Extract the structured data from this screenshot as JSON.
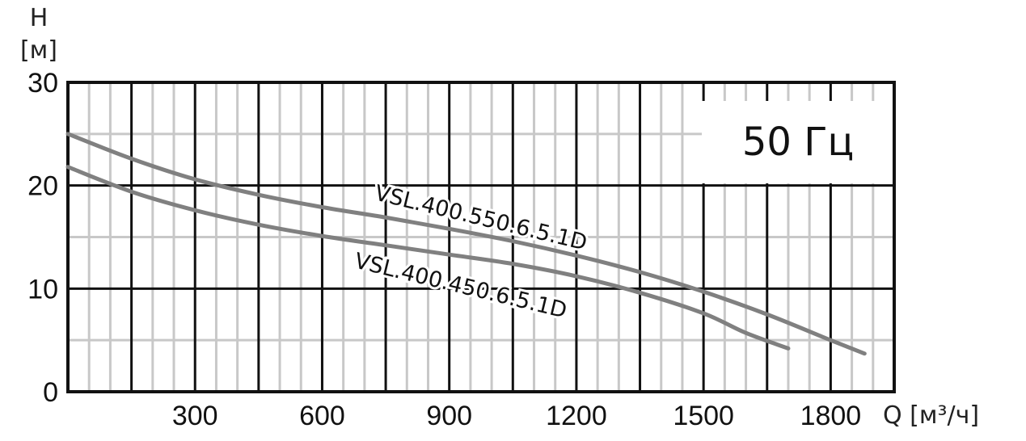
{
  "chart_data": {
    "type": "line",
    "title": "",
    "annotation": "50 Гц",
    "ylabel_symbol": "H",
    "ylabel_unit": "[м]",
    "xlabel_symbol": "Q",
    "xlabel_unit": "[м³/ч]",
    "xlim": [
      0,
      1950
    ],
    "ylim": [
      0,
      30
    ],
    "x_ticks": [
      300,
      600,
      900,
      1200,
      1500,
      1800
    ],
    "y_ticks": [
      0,
      10,
      20,
      30
    ],
    "grid": true,
    "series": [
      {
        "name": "VSL.400.550.6.5.1D",
        "color": "#808080",
        "x": [
          0,
          150,
          300,
          450,
          600,
          750,
          900,
          1050,
          1200,
          1350,
          1500,
          1650,
          1800,
          1880
        ],
        "y": [
          25,
          22.6,
          20.6,
          19.1,
          17.9,
          16.9,
          15.8,
          14.6,
          13.2,
          11.6,
          9.7,
          7.5,
          5,
          3.7
        ]
      },
      {
        "name": "VSL.400.450.6.5.1D",
        "color": "#808080",
        "x": [
          0,
          150,
          300,
          450,
          600,
          750,
          900,
          1050,
          1200,
          1350,
          1500,
          1600,
          1700
        ],
        "y": [
          21.8,
          19.4,
          17.6,
          16.2,
          15.1,
          14.2,
          13.3,
          12.4,
          11.2,
          9.6,
          7.6,
          5.7,
          4.2
        ]
      }
    ]
  }
}
